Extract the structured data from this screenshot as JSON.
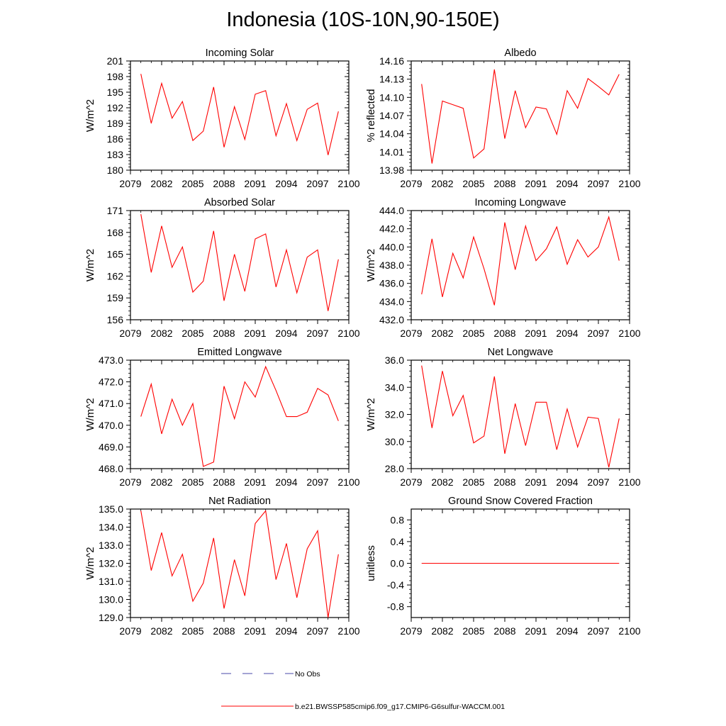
{
  "title": "Indonesia (10S-10N,90-150E)",
  "line_color": "#ff0000",
  "legend": {
    "entries": [
      {
        "label": "No Obs",
        "style": "dashed",
        "color": "#4a4aa8"
      },
      {
        "label": "b.e21.BWSSP585cmip6.f09_g17.CMIP6-G6sulfur-WACCM.001",
        "style": "solid",
        "color": "#ff0000"
      }
    ]
  },
  "chart_data": [
    {
      "type": "line",
      "title": "Incoming Solar",
      "ylabel": "W/m^2",
      "xlim": [
        2079,
        2100
      ],
      "ylim": [
        180,
        201
      ],
      "xticks": [
        2079,
        2082,
        2085,
        2088,
        2091,
        2094,
        2097,
        2100
      ],
      "yticks": [
        180,
        183,
        186,
        189,
        192,
        195,
        198,
        201
      ],
      "ytick_labels": [
        "180",
        "183",
        "186",
        "189",
        "192",
        "195",
        "198",
        "201"
      ],
      "x": [
        2080,
        2081,
        2082,
        2083,
        2084,
        2085,
        2086,
        2087,
        2088,
        2089,
        2090,
        2091,
        2092,
        2093,
        2094,
        2095,
        2096,
        2097,
        2098,
        2099
      ],
      "series": [
        {
          "values": [
            198.5,
            189.0,
            196.7,
            190.0,
            193.2,
            185.7,
            187.5,
            196.0,
            184.4,
            192.2,
            185.9,
            194.6,
            195.3,
            186.6,
            192.8,
            185.7,
            191.7,
            192.9,
            182.9,
            191.3
          ]
        }
      ]
    },
    {
      "type": "line",
      "title": "Albedo",
      "ylabel": "% reflected",
      "xlim": [
        2079,
        2100
      ],
      "ylim": [
        13.98,
        14.16
      ],
      "xticks": [
        2079,
        2082,
        2085,
        2088,
        2091,
        2094,
        2097,
        2100
      ],
      "yticks": [
        13.98,
        14.01,
        14.04,
        14.07,
        14.1,
        14.13,
        14.16
      ],
      "ytick_labels": [
        "13.98",
        "14.01",
        "14.04",
        "14.07",
        "14.10",
        "14.13",
        "14.16"
      ],
      "x": [
        2080,
        2081,
        2082,
        2083,
        2084,
        2085,
        2086,
        2087,
        2088,
        2089,
        2090,
        2091,
        2092,
        2093,
        2094,
        2095,
        2096,
        2097,
        2098,
        2099
      ],
      "series": [
        {
          "values": [
            14.122,
            13.991,
            14.094,
            14.088,
            14.082,
            14.0,
            14.015,
            14.146,
            14.032,
            14.111,
            14.05,
            14.084,
            14.081,
            14.039,
            14.111,
            14.082,
            14.131,
            14.118,
            14.104,
            14.138
          ]
        }
      ]
    },
    {
      "type": "line",
      "title": "Absorbed Solar",
      "ylabel": "W/m^2",
      "xlim": [
        2079,
        2100
      ],
      "ylim": [
        156,
        171
      ],
      "xticks": [
        2079,
        2082,
        2085,
        2088,
        2091,
        2094,
        2097,
        2100
      ],
      "yticks": [
        156,
        159,
        162,
        165,
        168,
        171
      ],
      "ytick_labels": [
        "156",
        "159",
        "162",
        "165",
        "168",
        "171"
      ],
      "x": [
        2080,
        2081,
        2082,
        2083,
        2084,
        2085,
        2086,
        2087,
        2088,
        2089,
        2090,
        2091,
        2092,
        2093,
        2094,
        2095,
        2096,
        2097,
        2098,
        2099
      ],
      "series": [
        {
          "values": [
            170.5,
            162.5,
            168.9,
            163.2,
            166.0,
            159.8,
            161.3,
            168.2,
            158.6,
            165.0,
            159.9,
            167.1,
            167.8,
            160.5,
            165.6,
            159.7,
            164.6,
            165.6,
            157.2,
            164.3
          ]
        }
      ]
    },
    {
      "type": "line",
      "title": "Incoming Longwave",
      "ylabel": "W/m^2",
      "xlim": [
        2079,
        2100
      ],
      "ylim": [
        432,
        444
      ],
      "xticks": [
        2079,
        2082,
        2085,
        2088,
        2091,
        2094,
        2097,
        2100
      ],
      "yticks": [
        432,
        434,
        436,
        438,
        440,
        442,
        444
      ],
      "ytick_labels": [
        "432.0",
        "434.0",
        "436.0",
        "438.0",
        "440.0",
        "442.0",
        "444.0"
      ],
      "x": [
        2080,
        2081,
        2082,
        2083,
        2084,
        2085,
        2086,
        2087,
        2088,
        2089,
        2090,
        2091,
        2092,
        2093,
        2094,
        2095,
        2096,
        2097,
        2098,
        2099
      ],
      "series": [
        {
          "values": [
            434.8,
            440.9,
            434.5,
            439.3,
            436.6,
            441.1,
            437.6,
            433.6,
            442.7,
            437.5,
            442.3,
            438.5,
            439.8,
            442.2,
            438.1,
            440.8,
            438.9,
            440.0,
            443.3,
            438.5
          ]
        }
      ]
    },
    {
      "type": "line",
      "title": "Emitted Longwave",
      "ylabel": "W/m^2",
      "xlim": [
        2079,
        2100
      ],
      "ylim": [
        468,
        473
      ],
      "xticks": [
        2079,
        2082,
        2085,
        2088,
        2091,
        2094,
        2097,
        2100
      ],
      "yticks": [
        468,
        469,
        470,
        471,
        472,
        473
      ],
      "ytick_labels": [
        "468.0",
        "469.0",
        "470.0",
        "471.0",
        "472.0",
        "473.0"
      ],
      "x": [
        2080,
        2081,
        2082,
        2083,
        2084,
        2085,
        2086,
        2087,
        2088,
        2089,
        2090,
        2091,
        2092,
        2093,
        2094,
        2095,
        2096,
        2097,
        2098,
        2099
      ],
      "series": [
        {
          "values": [
            470.4,
            471.9,
            469.6,
            471.2,
            470.0,
            471.0,
            468.1,
            468.3,
            471.8,
            470.3,
            472.0,
            471.3,
            472.7,
            471.6,
            470.4,
            470.4,
            470.6,
            471.7,
            471.4,
            470.2
          ]
        }
      ]
    },
    {
      "type": "line",
      "title": "Net Longwave",
      "ylabel": "W/m^2",
      "xlim": [
        2079,
        2100
      ],
      "ylim": [
        28,
        36
      ],
      "xticks": [
        2079,
        2082,
        2085,
        2088,
        2091,
        2094,
        2097,
        2100
      ],
      "yticks": [
        28,
        30,
        32,
        34,
        36
      ],
      "ytick_labels": [
        "28.0",
        "30.0",
        "32.0",
        "34.0",
        "36.0"
      ],
      "x": [
        2080,
        2081,
        2082,
        2083,
        2084,
        2085,
        2086,
        2087,
        2088,
        2089,
        2090,
        2091,
        2092,
        2093,
        2094,
        2095,
        2096,
        2097,
        2098,
        2099
      ],
      "series": [
        {
          "values": [
            35.6,
            31.0,
            35.2,
            31.9,
            33.4,
            29.9,
            30.4,
            34.8,
            29.1,
            32.8,
            29.7,
            32.9,
            32.9,
            29.4,
            32.4,
            29.6,
            31.8,
            31.7,
            28.1,
            31.7
          ]
        }
      ]
    },
    {
      "type": "line",
      "title": "Net Radiation",
      "ylabel": "W/m^2",
      "xlim": [
        2079,
        2100
      ],
      "ylim": [
        129,
        135
      ],
      "xticks": [
        2079,
        2082,
        2085,
        2088,
        2091,
        2094,
        2097,
        2100
      ],
      "yticks": [
        129,
        130,
        131,
        132,
        133,
        134,
        135
      ],
      "ytick_labels": [
        "129.0",
        "130.0",
        "131.0",
        "132.0",
        "133.0",
        "134.0",
        "135.0"
      ],
      "x": [
        2080,
        2081,
        2082,
        2083,
        2084,
        2085,
        2086,
        2087,
        2088,
        2089,
        2090,
        2091,
        2092,
        2093,
        2094,
        2095,
        2096,
        2097,
        2098,
        2099
      ],
      "series": [
        {
          "values": [
            134.9,
            131.6,
            133.7,
            131.3,
            132.5,
            129.9,
            130.9,
            133.4,
            129.5,
            132.2,
            130.2,
            134.2,
            134.9,
            131.1,
            133.1,
            130.1,
            132.8,
            133.8,
            129.0,
            132.5
          ]
        }
      ]
    },
    {
      "type": "line",
      "title": "Ground Snow Covered Fraction",
      "ylabel": "unitless",
      "xlim": [
        2079,
        2100
      ],
      "ylim": [
        -1.0,
        1.0
      ],
      "xticks": [
        2079,
        2082,
        2085,
        2088,
        2091,
        2094,
        2097,
        2100
      ],
      "yticks": [
        -0.8,
        -0.4,
        0.0,
        0.4,
        0.8
      ],
      "ytick_labels": [
        "-0.8",
        "-0.4",
        "0.0",
        "0.4",
        "0.8"
      ],
      "x": [
        2080,
        2081,
        2082,
        2083,
        2084,
        2085,
        2086,
        2087,
        2088,
        2089,
        2090,
        2091,
        2092,
        2093,
        2094,
        2095,
        2096,
        2097,
        2098,
        2099
      ],
      "series": [
        {
          "values": [
            0,
            0,
            0,
            0,
            0,
            0,
            0,
            0,
            0,
            0,
            0,
            0,
            0,
            0,
            0,
            0,
            0,
            0,
            0,
            0
          ]
        }
      ]
    }
  ]
}
